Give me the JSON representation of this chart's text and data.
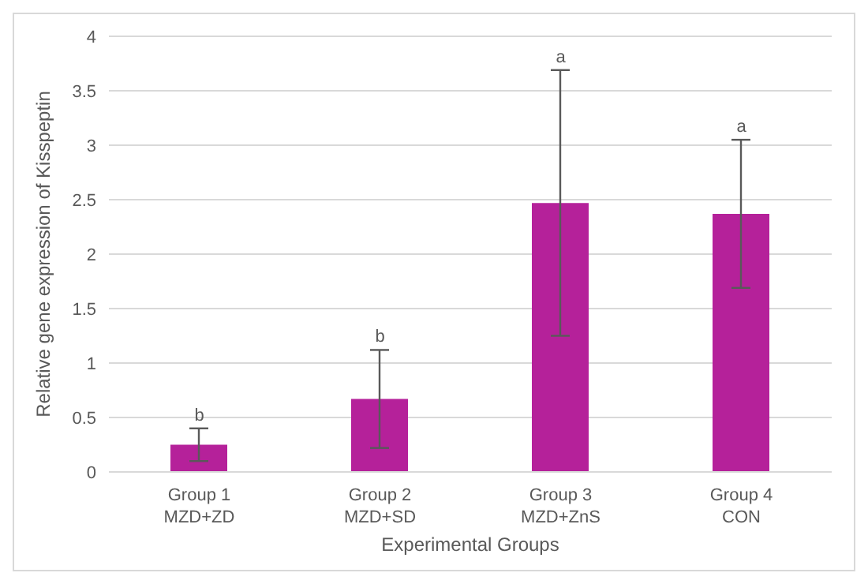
{
  "chart_data": {
    "type": "bar",
    "xlabel": "Experimental Groups",
    "ylabel": "Relative gene expression of Kisspeptin",
    "categories": [
      "Group 1\nMZD+ZD",
      "Group 2\nMZD+SD",
      "Group 3\nMZD+ZnS",
      "Group 4\nCON"
    ],
    "values": [
      0.25,
      0.67,
      2.47,
      2.37
    ],
    "errors": [
      0.15,
      0.45,
      1.22,
      0.68
    ],
    "color": "#b5219a",
    "ylim": [
      0,
      4
    ],
    "yticks": [
      0,
      0.5,
      1,
      1.5,
      2,
      2.5,
      3,
      3.5,
      4
    ],
    "grid": "y",
    "annotations": [
      {
        "text": "b",
        "x": "Group 1\nMZD+ZD",
        "y": 0.4
      },
      {
        "text": "b",
        "x": "Group 2\nMZD+SD",
        "y": 1.12
      },
      {
        "text": "a",
        "x": "Group 3\nMZD+ZnS",
        "y": 3.69
      },
      {
        "text": "a",
        "x": "Group 4\nCON",
        "y": 3.05
      }
    ]
  }
}
